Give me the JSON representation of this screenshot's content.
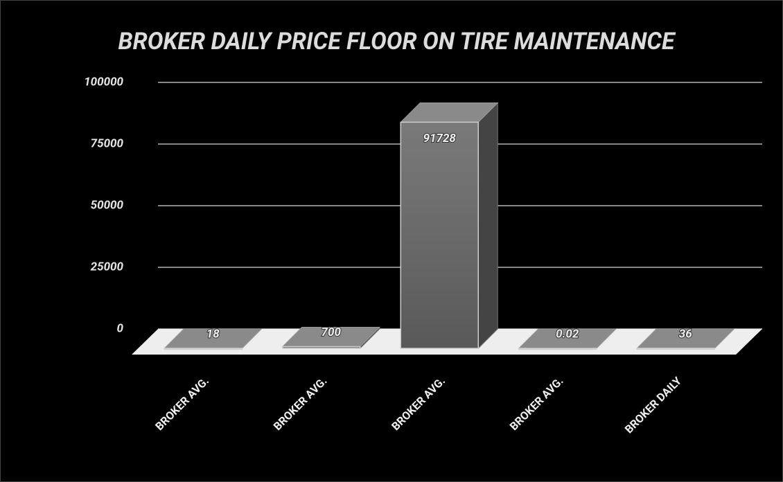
{
  "chart_data": {
    "type": "bar3d",
    "title": "BROKER DAILY PRICE FLOOR ON TIRE MAINTENANCE",
    "categories": [
      "BROKER AVG.",
      "BROKER AVG.",
      "BROKER AVG.",
      "BROKER AVG.",
      "BROKER DAILY"
    ],
    "values": [
      18,
      700,
      91728,
      0.02,
      36
    ],
    "color": "#6e6e6e",
    "ylim": [
      0,
      100000
    ],
    "yticks": [
      0,
      25000,
      50000,
      75000,
      100000
    ],
    "grid": true
  }
}
